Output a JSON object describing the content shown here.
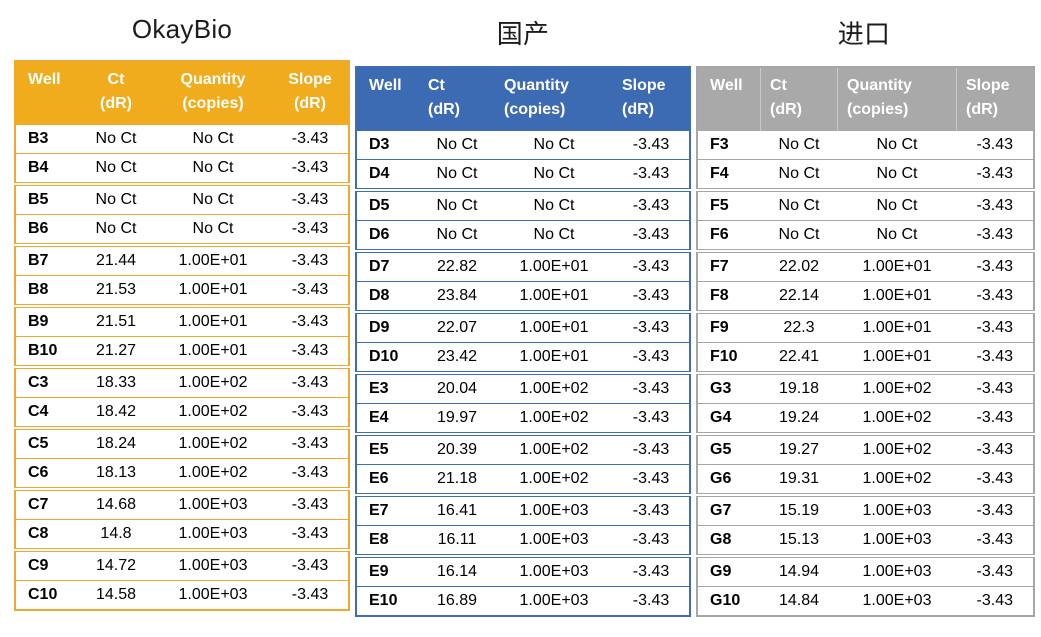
{
  "tables": [
    {
      "title": "OkayBio",
      "colors": {
        "header_bg": "#F0AC1C",
        "border": "#F0A830",
        "header_text": "#FFFFFF"
      },
      "columns": [
        {
          "line1": "Well",
          "line2": ""
        },
        {
          "line1": "Ct",
          "line2": "(dR)"
        },
        {
          "line1": "Quantity",
          "line2": "(copies)"
        },
        {
          "line1": "Slope",
          "line2": "(dR)"
        }
      ],
      "rows": [
        [
          "B3",
          "No Ct",
          "No Ct",
          "-3.43"
        ],
        [
          "B4",
          "No Ct",
          "No Ct",
          "-3.43"
        ],
        [
          "B5",
          "No Ct",
          "No Ct",
          "-3.43"
        ],
        [
          "B6",
          "No Ct",
          "No Ct",
          "-3.43"
        ],
        [
          "B7",
          "21.44",
          "1.00E+01",
          "-3.43"
        ],
        [
          "B8",
          "21.53",
          "1.00E+01",
          "-3.43"
        ],
        [
          "B9",
          "21.51",
          "1.00E+01",
          "-3.43"
        ],
        [
          "B10",
          "21.27",
          "1.00E+01",
          "-3.43"
        ],
        [
          "C3",
          "18.33",
          "1.00E+02",
          "-3.43"
        ],
        [
          "C4",
          "18.42",
          "1.00E+02",
          "-3.43"
        ],
        [
          "C5",
          "18.24",
          "1.00E+02",
          "-3.43"
        ],
        [
          "C6",
          "18.13",
          "1.00E+02",
          "-3.43"
        ],
        [
          "C7",
          "14.68",
          "1.00E+03",
          "-3.43"
        ],
        [
          "C8",
          "14.8",
          "1.00E+03",
          "-3.43"
        ],
        [
          "C9",
          "14.72",
          "1.00E+03",
          "-3.43"
        ],
        [
          "C10",
          "14.58",
          "1.00E+03",
          "-3.43"
        ]
      ]
    },
    {
      "title": "国产",
      "colors": {
        "header_bg": "#3C6BB3",
        "border": "#3E6DB5",
        "header_text": "#FFFFFF"
      },
      "columns": [
        {
          "line1": "Well",
          "line2": ""
        },
        {
          "line1": "Ct",
          "line2": "(dR)"
        },
        {
          "line1": "Quantity",
          "line2": "(copies)"
        },
        {
          "line1": "Slope",
          "line2": "(dR)"
        }
      ],
      "rows": [
        [
          "D3",
          "No Ct",
          "No Ct",
          "-3.43"
        ],
        [
          "D4",
          "No Ct",
          "No Ct",
          "-3.43"
        ],
        [
          "D5",
          "No Ct",
          "No Ct",
          "-3.43"
        ],
        [
          "D6",
          "No Ct",
          "No Ct",
          "-3.43"
        ],
        [
          "D7",
          "22.82",
          "1.00E+01",
          "-3.43"
        ],
        [
          "D8",
          "23.84",
          "1.00E+01",
          "-3.43"
        ],
        [
          "D9",
          "22.07",
          "1.00E+01",
          "-3.43"
        ],
        [
          "D10",
          "23.42",
          "1.00E+01",
          "-3.43"
        ],
        [
          "E3",
          "20.04",
          "1.00E+02",
          "-3.43"
        ],
        [
          "E4",
          "19.97",
          "1.00E+02",
          "-3.43"
        ],
        [
          "E5",
          "20.39",
          "1.00E+02",
          "-3.43"
        ],
        [
          "E6",
          "21.18",
          "1.00E+02",
          "-3.43"
        ],
        [
          "E7",
          "16.41",
          "1.00E+03",
          "-3.43"
        ],
        [
          "E8",
          "16.11",
          "1.00E+03",
          "-3.43"
        ],
        [
          "E9",
          "16.14",
          "1.00E+03",
          "-3.43"
        ],
        [
          "E10",
          "16.89",
          "1.00E+03",
          "-3.43"
        ]
      ]
    },
    {
      "title": "进口",
      "colors": {
        "header_bg": "#A9A9A9",
        "border": "#A6A6A6",
        "header_text": "#FFFFFF"
      },
      "columns": [
        {
          "line1": "Well",
          "line2": ""
        },
        {
          "line1": "Ct",
          "line2": "(dR)"
        },
        {
          "line1": "Quantity",
          "line2": "(copies)"
        },
        {
          "line1": "Slope",
          "line2": "(dR)"
        }
      ],
      "rows": [
        [
          "F3",
          "No Ct",
          "No Ct",
          "-3.43"
        ],
        [
          "F4",
          "No Ct",
          "No Ct",
          "-3.43"
        ],
        [
          "F5",
          "No Ct",
          "No Ct",
          "-3.43"
        ],
        [
          "F6",
          "No Ct",
          "No Ct",
          "-3.43"
        ],
        [
          "F7",
          "22.02",
          "1.00E+01",
          "-3.43"
        ],
        [
          "F8",
          "22.14",
          "1.00E+01",
          "-3.43"
        ],
        [
          "F9",
          "22.3",
          "1.00E+01",
          "-3.43"
        ],
        [
          "F10",
          "22.41",
          "1.00E+01",
          "-3.43"
        ],
        [
          "G3",
          "19.18",
          "1.00E+02",
          "-3.43"
        ],
        [
          "G4",
          "19.24",
          "1.00E+02",
          "-3.43"
        ],
        [
          "G5",
          "19.27",
          "1.00E+02",
          "-3.43"
        ],
        [
          "G6",
          "19.31",
          "1.00E+02",
          "-3.43"
        ],
        [
          "G7",
          "15.19",
          "1.00E+03",
          "-3.43"
        ],
        [
          "G8",
          "15.13",
          "1.00E+03",
          "-3.43"
        ],
        [
          "G9",
          "14.94",
          "1.00E+03",
          "-3.43"
        ],
        [
          "G10",
          "14.84",
          "1.00E+03",
          "-3.43"
        ]
      ]
    }
  ]
}
